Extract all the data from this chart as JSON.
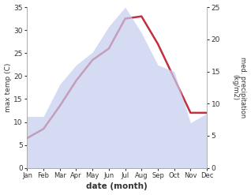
{
  "months": [
    "Jan",
    "Feb",
    "Mar",
    "Apr",
    "May",
    "Jun",
    "Jul",
    "Aug",
    "Sep",
    "Oct",
    "Nov",
    "Dec"
  ],
  "month_indices": [
    1,
    2,
    3,
    4,
    5,
    6,
    7,
    8,
    9,
    10,
    11,
    12
  ],
  "temperature": [
    6.5,
    8.5,
    13.5,
    19.0,
    23.5,
    26.0,
    32.5,
    33.0,
    27.0,
    19.5,
    12.0,
    12.0
  ],
  "precipitation": [
    8.0,
    8.0,
    13.0,
    16.0,
    18.0,
    22.0,
    25.0,
    21.0,
    16.0,
    15.0,
    7.0,
    8.5
  ],
  "temp_ylim": [
    0,
    35
  ],
  "precip_ylim": [
    0,
    25
  ],
  "temp_color": "#c03040",
  "precip_fill_color": "#c5cdf0",
  "xlabel": "date (month)",
  "ylabel_left": "max temp (C)",
  "ylabel_right": "med. precipitation\n(kg/m2)",
  "temp_linewidth": 1.8,
  "bg_color": "#ffffff",
  "fig_width": 3.18,
  "fig_height": 2.47,
  "dpi": 100
}
